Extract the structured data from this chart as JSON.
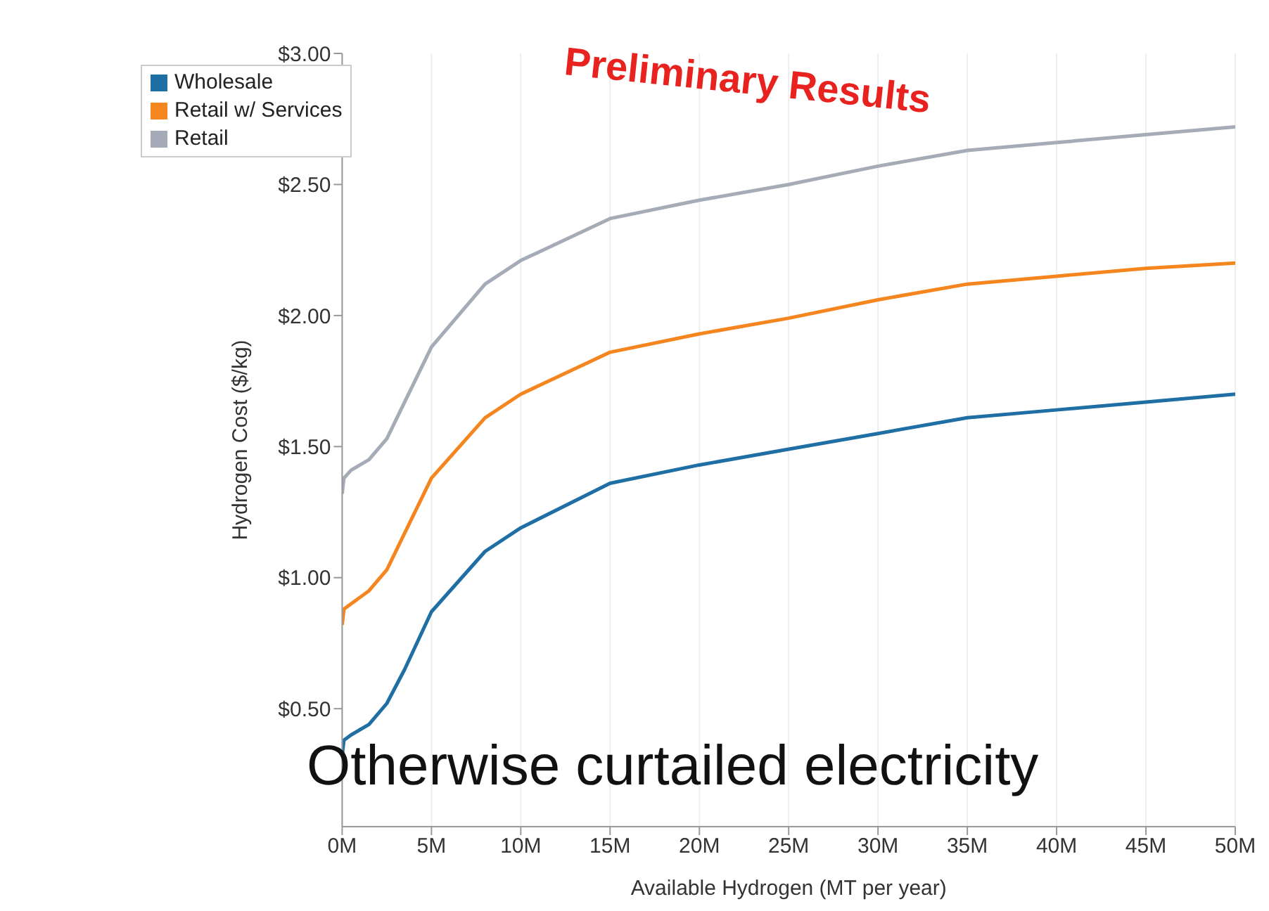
{
  "chart_data": {
    "type": "line",
    "xlabel": "Available Hydrogen (MT per year)",
    "ylabel": "Hydrogen Cost ($/kg)",
    "annotations": [
      "Preliminary Results",
      "Otherwise curtailed electricity"
    ],
    "x": [
      0,
      0.1,
      0.5,
      1.5,
      2.5,
      3.5,
      5,
      8,
      10,
      15,
      20,
      25,
      30,
      35,
      40,
      45,
      50
    ],
    "series": [
      {
        "name": "Wholesale",
        "color": "#1f6fa5",
        "values": [
          0.32,
          0.38,
          0.4,
          0.44,
          0.52,
          0.65,
          0.87,
          1.1,
          1.19,
          1.36,
          1.43,
          1.49,
          1.55,
          1.61,
          1.64,
          1.67,
          1.7
        ]
      },
      {
        "name": "Retail w/ Services",
        "color": "#f5861f",
        "values": [
          0.82,
          0.88,
          0.9,
          0.95,
          1.03,
          1.17,
          1.38,
          1.61,
          1.7,
          1.86,
          1.93,
          1.99,
          2.06,
          2.12,
          2.15,
          2.18,
          2.2
        ]
      },
      {
        "name": "Retail",
        "color": "#a6acb7",
        "values": [
          1.32,
          1.38,
          1.41,
          1.45,
          1.53,
          1.67,
          1.88,
          2.12,
          2.21,
          2.37,
          2.44,
          2.5,
          2.57,
          2.63,
          2.66,
          2.69,
          2.72
        ]
      }
    ],
    "xlim": [
      0,
      50
    ],
    "xticks": [
      {
        "value": 0,
        "label": "0M"
      },
      {
        "value": 5,
        "label": "5M"
      },
      {
        "value": 10,
        "label": "10M"
      },
      {
        "value": 15,
        "label": "15M"
      },
      {
        "value": 20,
        "label": "20M"
      },
      {
        "value": 25,
        "label": "25M"
      },
      {
        "value": 30,
        "label": "30M"
      },
      {
        "value": 35,
        "label": "35M"
      },
      {
        "value": 40,
        "label": "40M"
      },
      {
        "value": 45,
        "label": "45M"
      },
      {
        "value": 50,
        "label": "50M"
      }
    ],
    "ylim": [
      0.05,
      3.0
    ],
    "yticks": [
      {
        "value": 0.5,
        "label": "$0.50"
      },
      {
        "value": 1,
        "label": "$1.00"
      },
      {
        "value": 1.5,
        "label": "$1.50"
      },
      {
        "value": 2,
        "label": "$2.00"
      },
      {
        "value": 2.5,
        "label": "$2.50"
      },
      {
        "value": 3,
        "label": "$3.00"
      }
    ],
    "grid": "x",
    "legend": "top left",
    "marker": "none",
    "line_style": "solid"
  }
}
